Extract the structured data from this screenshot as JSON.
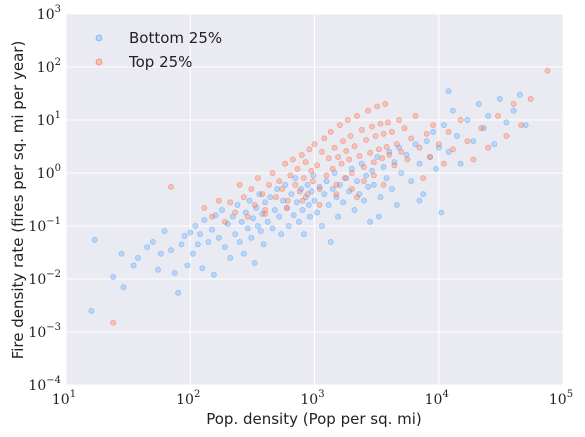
{
  "chart_data": {
    "type": "scatter",
    "xscale": "log",
    "yscale": "log",
    "xlim": [
      10,
      100000
    ],
    "ylim": [
      0.0001,
      1000
    ],
    "xlabel": "Pop. density (Pop per sq. mi)",
    "ylabel": "Fire density rate (fires per sq. mi per year)",
    "x_ticks": [
      {
        "base": "10",
        "exp": "1"
      },
      {
        "base": "10",
        "exp": "2"
      },
      {
        "base": "10",
        "exp": "3"
      },
      {
        "base": "10",
        "exp": "4"
      },
      {
        "base": "10",
        "exp": "5"
      }
    ],
    "y_ticks": [
      {
        "base": "10",
        "exp": "−4"
      },
      {
        "base": "10",
        "exp": "−3"
      },
      {
        "base": "10",
        "exp": "−2"
      },
      {
        "base": "10",
        "exp": "−1"
      },
      {
        "base": "10",
        "exp": "0"
      },
      {
        "base": "10",
        "exp": "1"
      },
      {
        "base": "10",
        "exp": "2"
      },
      {
        "base": "10",
        "exp": "3"
      }
    ],
    "grid": true,
    "legend_position": "top-left",
    "series": [
      {
        "name": "Bottom 25%",
        "color": "#4da3ff",
        "points": [
          [
            16,
            0.0025
          ],
          [
            17,
            0.055
          ],
          [
            24,
            0.011
          ],
          [
            28,
            0.03
          ],
          [
            29,
            0.007
          ],
          [
            35,
            0.018
          ],
          [
            38,
            0.025
          ],
          [
            45,
            0.04
          ],
          [
            50,
            0.05
          ],
          [
            55,
            0.015
          ],
          [
            58,
            0.03
          ],
          [
            62,
            0.08
          ],
          [
            70,
            0.035
          ],
          [
            75,
            0.013
          ],
          [
            80,
            0.0055
          ],
          [
            85,
            0.045
          ],
          [
            90,
            0.065
          ],
          [
            95,
            0.018
          ],
          [
            100,
            0.075
          ],
          [
            105,
            0.03
          ],
          [
            110,
            0.1
          ],
          [
            115,
            0.045
          ],
          [
            120,
            0.07
          ],
          [
            125,
            0.016
          ],
          [
            130,
            0.13
          ],
          [
            140,
            0.05
          ],
          [
            150,
            0.085
          ],
          [
            155,
            0.012
          ],
          [
            160,
            0.16
          ],
          [
            170,
            0.06
          ],
          [
            180,
            0.2
          ],
          [
            190,
            0.04
          ],
          [
            200,
            0.11
          ],
          [
            210,
            0.025
          ],
          [
            220,
            0.15
          ],
          [
            230,
            0.07
          ],
          [
            240,
            0.25
          ],
          [
            250,
            0.05
          ],
          [
            260,
            0.12
          ],
          [
            270,
            0.03
          ],
          [
            280,
            0.18
          ],
          [
            290,
            0.09
          ],
          [
            300,
            0.3
          ],
          [
            310,
            0.06
          ],
          [
            320,
            0.14
          ],
          [
            330,
            0.02
          ],
          [
            340,
            0.22
          ],
          [
            350,
            0.1
          ],
          [
            360,
            0.4
          ],
          [
            370,
            0.08
          ],
          [
            380,
            0.17
          ],
          [
            390,
            0.045
          ],
          [
            400,
            0.28
          ],
          [
            420,
            0.12
          ],
          [
            440,
            0.35
          ],
          [
            460,
            0.09
          ],
          [
            480,
            0.2
          ],
          [
            500,
            0.5
          ],
          [
            520,
            0.15
          ],
          [
            540,
            0.07
          ],
          [
            560,
            0.3
          ],
          [
            580,
            0.6
          ],
          [
            600,
            0.22
          ],
          [
            620,
            0.1
          ],
          [
            650,
            0.4
          ],
          [
            680,
            0.16
          ],
          [
            700,
            0.8
          ],
          [
            720,
            0.28
          ],
          [
            750,
            0.12
          ],
          [
            780,
            0.5
          ],
          [
            800,
            0.2
          ],
          [
            820,
            0.07
          ],
          [
            850,
            0.35
          ],
          [
            880,
            0.6
          ],
          [
            900,
            0.25
          ],
          [
            920,
            0.15
          ],
          [
            950,
            0.45
          ],
          [
            980,
            0.9
          ],
          [
            1000,
            0.3
          ],
          [
            1050,
            0.18
          ],
          [
            1100,
            0.55
          ],
          [
            1150,
            0.1
          ],
          [
            1200,
            0.4
          ],
          [
            1250,
            0.7
          ],
          [
            1300,
            0.25
          ],
          [
            1350,
            0.05
          ],
          [
            1400,
            0.5
          ],
          [
            1450,
            1.0
          ],
          [
            1500,
            0.35
          ],
          [
            1550,
            0.15
          ],
          [
            1600,
            0.6
          ],
          [
            1700,
            0.28
          ],
          [
            1800,
            0.8
          ],
          [
            1900,
            0.45
          ],
          [
            2000,
            1.2
          ],
          [
            2100,
            0.2
          ],
          [
            2200,
            0.7
          ],
          [
            2300,
            0.4
          ],
          [
            2400,
            1.5
          ],
          [
            2500,
            0.3
          ],
          [
            2600,
            0.9
          ],
          [
            2700,
            0.55
          ],
          [
            2800,
            0.12
          ],
          [
            2900,
            1.1
          ],
          [
            3000,
            0.6
          ],
          [
            3200,
            2.0
          ],
          [
            3400,
            0.35
          ],
          [
            3600,
            1.3
          ],
          [
            3800,
            0.8
          ],
          [
            4000,
            2.5
          ],
          [
            4200,
            0.5
          ],
          [
            4400,
            1.6
          ],
          [
            4600,
            0.25
          ],
          [
            4800,
            3.0
          ],
          [
            5000,
            1.0
          ],
          [
            5500,
            2.2
          ],
          [
            6000,
            0.7
          ],
          [
            6500,
            3.5
          ],
          [
            7000,
            1.5
          ],
          [
            7500,
            0.4
          ],
          [
            8000,
            4.0
          ],
          [
            8500,
            2.0
          ],
          [
            9000,
            6.0
          ],
          [
            9500,
            1.2
          ],
          [
            10000,
            3.0
          ],
          [
            11000,
            8.0
          ],
          [
            12000,
            2.5
          ],
          [
            13000,
            15.0
          ],
          [
            14000,
            5.0
          ],
          [
            15000,
            1.5
          ],
          [
            17000,
            10.0
          ],
          [
            19000,
            4.0
          ],
          [
            21000,
            20.0
          ],
          [
            23000,
            7.0
          ],
          [
            25000,
            12.0
          ],
          [
            28000,
            3.5
          ],
          [
            31000,
            25.0
          ],
          [
            35000,
            9.0
          ],
          [
            40000,
            15.0
          ],
          [
            45000,
            30.0
          ],
          [
            50000,
            8.0
          ],
          [
            12000,
            35.0
          ],
          [
            10500,
            0.18
          ],
          [
            7000,
            0.3
          ],
          [
            3300,
            0.15
          ]
        ]
      },
      {
        "name": "Top 25%",
        "color": "#ff6a3d",
        "points": [
          [
            24,
            0.0015
          ],
          [
            70,
            0.55
          ],
          [
            130,
            0.22
          ],
          [
            150,
            0.15
          ],
          [
            170,
            0.3
          ],
          [
            190,
            0.12
          ],
          [
            210,
            0.28
          ],
          [
            230,
            0.18
          ],
          [
            250,
            0.6
          ],
          [
            270,
            0.35
          ],
          [
            290,
            0.15
          ],
          [
            310,
            0.5
          ],
          [
            330,
            0.25
          ],
          [
            350,
            0.8
          ],
          [
            380,
            0.4
          ],
          [
            400,
            0.2
          ],
          [
            430,
            0.6
          ],
          [
            460,
            1.0
          ],
          [
            490,
            0.35
          ],
          [
            520,
            0.7
          ],
          [
            550,
            0.5
          ],
          [
            580,
            1.5
          ],
          [
            610,
            0.3
          ],
          [
            640,
            0.9
          ],
          [
            670,
            1.8
          ],
          [
            700,
            0.6
          ],
          [
            730,
            1.2
          ],
          [
            760,
            0.45
          ],
          [
            790,
            2.2
          ],
          [
            820,
            0.8
          ],
          [
            850,
            1.6
          ],
          [
            880,
            0.4
          ],
          [
            910,
            2.8
          ],
          [
            940,
            1.1
          ],
          [
            970,
            0.7
          ],
          [
            1000,
            3.5
          ],
          [
            1050,
            1.4
          ],
          [
            1100,
            0.5
          ],
          [
            1150,
            2.5
          ],
          [
            1200,
            4.5
          ],
          [
            1250,
            0.9
          ],
          [
            1300,
            1.9
          ],
          [
            1350,
            6.0
          ],
          [
            1400,
            1.2
          ],
          [
            1450,
            3.0
          ],
          [
            1500,
            0.6
          ],
          [
            1550,
            2.0
          ],
          [
            1600,
            8.0
          ],
          [
            1650,
            1.5
          ],
          [
            1700,
            4.0
          ],
          [
            1750,
            0.8
          ],
          [
            1800,
            2.6
          ],
          [
            1850,
            10.0
          ],
          [
            1900,
            1.8
          ],
          [
            1950,
            5.0
          ],
          [
            2000,
            1.0
          ],
          [
            2100,
            3.2
          ],
          [
            2200,
            12.0
          ],
          [
            2300,
            2.1
          ],
          [
            2400,
            6.5
          ],
          [
            2500,
            1.3
          ],
          [
            2600,
            4.2
          ],
          [
            2700,
            15.0
          ],
          [
            2800,
            2.4
          ],
          [
            2900,
            7.5
          ],
          [
            3000,
            1.6
          ],
          [
            3100,
            5.0
          ],
          [
            3200,
            18.0
          ],
          [
            3300,
            2.8
          ],
          [
            3400,
            8.5
          ],
          [
            3500,
            1.9
          ],
          [
            3600,
            5.5
          ],
          [
            3700,
            20.0
          ],
          [
            3800,
            3.1
          ],
          [
            3900,
            9.0
          ],
          [
            4000,
            2.2
          ],
          [
            4200,
            6.0
          ],
          [
            4400,
            1.4
          ],
          [
            4600,
            3.5
          ],
          [
            4800,
            10.0
          ],
          [
            5000,
            2.5
          ],
          [
            5300,
            7.0
          ],
          [
            5600,
            1.8
          ],
          [
            6000,
            4.5
          ],
          [
            6500,
            12.0
          ],
          [
            7000,
            3.0
          ],
          [
            7500,
            0.8
          ],
          [
            8000,
            5.5
          ],
          [
            8500,
            2.0
          ],
          [
            9000,
            8.0
          ],
          [
            10000,
            3.5
          ],
          [
            11000,
            1.5
          ],
          [
            12000,
            6.0
          ],
          [
            13000,
            2.8
          ],
          [
            15000,
            10.0
          ],
          [
            17000,
            4.0
          ],
          [
            19000,
            1.8
          ],
          [
            22000,
            7.0
          ],
          [
            25000,
            3.0
          ],
          [
            30000,
            12.0
          ],
          [
            35000,
            5.0
          ],
          [
            40000,
            20.0
          ],
          [
            46000,
            8.0
          ],
          [
            55000,
            25.0
          ],
          [
            75000,
            85.0
          ],
          [
            400,
            0.17
          ],
          [
            600,
            0.22
          ],
          [
            800,
            0.3
          ],
          [
            1100,
            0.25
          ],
          [
            1500,
            0.4
          ],
          [
            2000,
            0.5
          ],
          [
            2500,
            0.7
          ],
          [
            3000,
            0.9
          ],
          [
            3600,
            0.6
          ],
          [
            2200,
            0.35
          ]
        ]
      }
    ]
  }
}
